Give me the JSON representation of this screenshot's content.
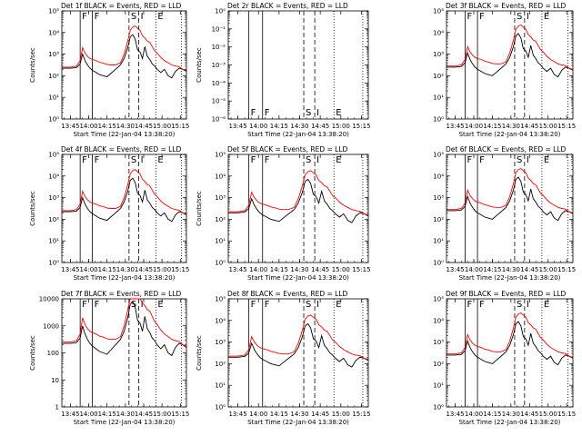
{
  "xlabel": "Start Time (22-Jan-04 13:38:20)",
  "ylabel": "Counts/sec",
  "x_tick_labels": [
    "13:45",
    "14:00",
    "14:15",
    "14:30",
    "14:45",
    "15:00",
    "15:15"
  ],
  "x_range_minutes": [
    "13:38",
    "15:20"
  ],
  "y_scale": "log",
  "series_colors": {
    "events": "#000000",
    "lld": "#ff0000"
  },
  "marker_times": {
    "F_solid": [
      "13:53",
      "14:03"
    ],
    "S_dashed": [
      "14:33",
      "14:41"
    ],
    "E_dotted": [
      "14:55",
      "15:16"
    ]
  },
  "panel_tick_sets": {
    "exp": [
      "10⁰",
      "10¹",
      "10²",
      "10³",
      "10⁴",
      "10⁵"
    ],
    "exp_neg": [
      "10⁻⁶",
      "10⁻⁵",
      "10⁻⁴",
      "10⁻³",
      "10⁻²",
      "10⁻¹",
      "10⁰"
    ],
    "dec": [
      "1",
      "10",
      "100",
      "1000",
      "10000"
    ]
  },
  "chart_data": [
    {
      "type": "line",
      "title": "Det 1f BLACK = Events, RED = LLD",
      "ylim_log10": [
        0,
        5
      ],
      "has_ylabel": true,
      "has_data": true,
      "letters": [
        "F",
        "F",
        "S",
        "I",
        "E"
      ]
    },
    {
      "type": "line",
      "title": "Det 2r BLACK = Events, RED = LLD",
      "ylim_log10": [
        -6,
        0
      ],
      "has_ylabel": true,
      "has_data": false,
      "letters": [
        "F",
        "F",
        "S",
        "I",
        "E"
      ]
    },
    {
      "type": "line",
      "title": "Det 3f BLACK = Events, RED = LLD",
      "ylim_log10": [
        0,
        5
      ],
      "has_ylabel": false,
      "has_data": true,
      "letters": [
        "F",
        "F",
        "S",
        "I",
        "E"
      ]
    },
    {
      "type": "line",
      "title": "Det 4f BLACK = Events, RED = LLD",
      "ylim_log10": [
        0,
        5
      ],
      "has_ylabel": true,
      "has_data": true,
      "letters": [
        "F",
        "F",
        "S",
        "I",
        "E"
      ]
    },
    {
      "type": "line",
      "title": "Det 5f BLACK = Events, RED = LLD",
      "ylim_log10": [
        0,
        5
      ],
      "has_ylabel": true,
      "has_data": true,
      "letters": [
        "F",
        "F",
        "S",
        "I",
        "E"
      ]
    },
    {
      "type": "line",
      "title": "Det 6f BLACK = Events, RED = LLD",
      "ylim_log10": [
        0,
        5
      ],
      "has_ylabel": false,
      "has_data": true,
      "letters": [
        "F",
        "F",
        "S",
        "I",
        "E"
      ]
    },
    {
      "type": "line",
      "title": "Det 7f BLACK = Events, RED = LLD",
      "ylim_log10": [
        0,
        4
      ],
      "has_ylabel": true,
      "has_data": true,
      "letters": [
        "F",
        "F",
        "S",
        "I",
        "E"
      ]
    },
    {
      "type": "line",
      "title": "Det 8f BLACK = Events, RED = LLD",
      "ylim_log10": [
        0,
        5
      ],
      "has_ylabel": true,
      "has_data": true,
      "letters": [
        "F",
        "F",
        "S",
        "I",
        "E"
      ]
    },
    {
      "type": "line",
      "title": "Det 9f BLACK = Events, RED = LLD",
      "ylim_log10": [
        0,
        5
      ],
      "has_ylabel": false,
      "has_data": true,
      "letters": [
        "F",
        "F",
        "S",
        "I",
        "E"
      ]
    }
  ],
  "lld_curve": {
    "t": [
      "13:38",
      "13:45",
      "13:50",
      "13:53",
      "13:55",
      "13:57",
      "13:59",
      "14:01",
      "14:03",
      "14:06",
      "14:09",
      "14:12",
      "14:15",
      "14:18",
      "14:22",
      "14:26",
      "14:29",
      "14:32",
      "14:34",
      "14:36",
      "14:38",
      "14:40",
      "14:42",
      "14:44",
      "14:46",
      "14:48",
      "14:50",
      "14:52",
      "14:54",
      "14:56",
      "14:59",
      "15:02",
      "15:05",
      "15:08",
      "15:11",
      "15:14",
      "15:17",
      "15:20"
    ],
    "log10": [
      2.4,
      2.4,
      2.45,
      2.7,
      3.3,
      3.05,
      2.9,
      2.8,
      2.75,
      2.7,
      2.62,
      2.58,
      2.52,
      2.5,
      2.5,
      2.6,
      3.0,
      3.6,
      4.1,
      4.25,
      4.3,
      4.2,
      4.1,
      3.85,
      3.75,
      3.6,
      3.55,
      3.35,
      3.15,
      3.05,
      2.85,
      2.7,
      2.6,
      2.5,
      2.45,
      2.42,
      2.3,
      2.25
    ]
  },
  "event_curve": {
    "t": [
      "13:38",
      "13:45",
      "13:50",
      "13:53",
      "13:55",
      "13:57",
      "13:59",
      "14:01",
      "14:03",
      "14:06",
      "14:09",
      "14:12",
      "14:15",
      "14:18",
      "14:22",
      "14:26",
      "14:29",
      "14:32",
      "14:34",
      "14:36",
      "14:38",
      "14:40",
      "14:42",
      "14:44",
      "14:46",
      "14:48",
      "14:50",
      "14:52",
      "14:54",
      "14:56",
      "14:59",
      "15:02",
      "15:05",
      "15:08",
      "15:11",
      "15:14",
      "15:17",
      "15:20"
    ],
    "log10": [
      2.35,
      2.35,
      2.38,
      2.55,
      3.0,
      2.7,
      2.5,
      2.35,
      2.25,
      2.15,
      2.05,
      2.0,
      1.95,
      2.1,
      2.3,
      2.5,
      2.8,
      3.3,
      3.8,
      3.9,
      3.7,
      3.2,
      3.1,
      2.8,
      3.35,
      2.9,
      2.75,
      2.55,
      2.45,
      2.3,
      2.15,
      2.3,
      2.0,
      1.9,
      2.2,
      2.35,
      2.3,
      2.2
    ]
  }
}
